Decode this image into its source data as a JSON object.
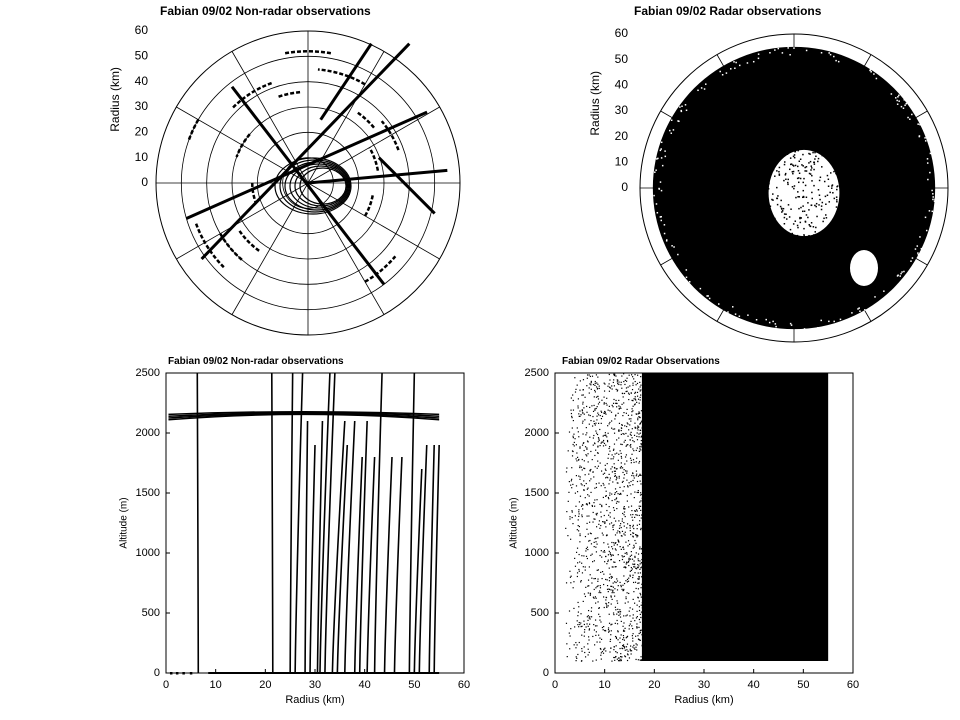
{
  "chart_data": [
    {
      "type": "scatter",
      "projection": "polar",
      "title": "Fabian 09/02 Non-radar observations",
      "ylabel": "Radius (km)",
      "ylim": [
        0,
        60
      ],
      "y_ticks": [
        "0",
        "10",
        "20",
        "30",
        "40",
        "50",
        "60"
      ],
      "grid": true,
      "tracks": [
        {
          "description": "radial flight leg",
          "points": [
            [
              -42,
              -30
            ],
            [
              40,
              55
            ]
          ]
        },
        {
          "description": "radial flight leg",
          "points": [
            [
              -30,
              38
            ],
            [
              30,
              -40
            ]
          ]
        },
        {
          "description": "radial flight leg",
          "points": [
            [
              -48,
              -14
            ],
            [
              47,
              28
            ]
          ]
        },
        {
          "description": "radial flight leg",
          "points": [
            [
              0,
              0
            ],
            [
              55,
              5
            ]
          ]
        },
        {
          "description": "radial flight leg",
          "points": [
            [
              5,
              25
            ],
            [
              25,
              55
            ]
          ]
        },
        {
          "description": "radial flight leg",
          "points": [
            [
              28,
              10
            ],
            [
              50,
              -12
            ]
          ]
        }
      ]
    },
    {
      "type": "scatter",
      "projection": "polar",
      "title": "Fabian 09/02 Radar observations",
      "ylabel": "Radius (km)",
      "ylim": [
        0,
        60
      ],
      "y_ticks": [
        "0",
        "10",
        "20",
        "30",
        "40",
        "50",
        "60"
      ],
      "grid": true,
      "coverage": {
        "max_radius": 55,
        "sparse_core_radius": 12
      }
    },
    {
      "type": "line",
      "title": "Fabian 09/02 Non-radar observations",
      "xlabel": "Radius (km)",
      "ylabel": "Altitude (m)",
      "xlim": [
        0,
        60
      ],
      "ylim": [
        0,
        2500
      ],
      "x_ticks": [
        "0",
        "10",
        "20",
        "30",
        "40",
        "50",
        "60"
      ],
      "y_ticks": [
        "0",
        "500",
        "1000",
        "1500",
        "2000",
        "2500"
      ],
      "flight_level_m": 2130,
      "profiles": [
        {
          "x": [
            6.5,
            6.3
          ],
          "y": [
            0,
            2500
          ]
        },
        {
          "x": [
            21.5,
            21.3
          ],
          "y": [
            0,
            2500
          ]
        },
        {
          "x": [
            25,
            25.5
          ],
          "y": [
            0,
            2500
          ]
        },
        {
          "x": [
            26,
            27.5
          ],
          "y": [
            0,
            2500
          ]
        },
        {
          "x": [
            28,
            28.5
          ],
          "y": [
            0,
            2100
          ]
        },
        {
          "x": [
            29,
            30
          ],
          "y": [
            0,
            1900
          ]
        },
        {
          "x": [
            30.5,
            31.5
          ],
          "y": [
            0,
            2100
          ]
        },
        {
          "x": [
            31,
            33
          ],
          "y": [
            0,
            2500
          ]
        },
        {
          "x": [
            32,
            34
          ],
          "y": [
            0,
            2500
          ]
        },
        {
          "x": [
            33.5,
            36
          ],
          "y": [
            0,
            2100
          ]
        },
        {
          "x": [
            34.5,
            36.5
          ],
          "y": [
            0,
            1900
          ]
        },
        {
          "x": [
            36,
            38
          ],
          "y": [
            0,
            2100
          ]
        },
        {
          "x": [
            38,
            39.5
          ],
          "y": [
            0,
            1800
          ]
        },
        {
          "x": [
            39,
            40.5
          ],
          "y": [
            0,
            2100
          ]
        },
        {
          "x": [
            40.5,
            42
          ],
          "y": [
            0,
            1800
          ]
        },
        {
          "x": [
            42,
            43.5
          ],
          "y": [
            0,
            2500
          ]
        },
        {
          "x": [
            44,
            45.5
          ],
          "y": [
            0,
            1800
          ]
        },
        {
          "x": [
            46,
            47.5
          ],
          "y": [
            0,
            1800
          ]
        },
        {
          "x": [
            49,
            50
          ],
          "y": [
            0,
            2500
          ]
        },
        {
          "x": [
            50,
            51.5
          ],
          "y": [
            0,
            1700
          ]
        },
        {
          "x": [
            51,
            52.5
          ],
          "y": [
            0,
            1900
          ]
        },
        {
          "x": [
            53,
            54
          ],
          "y": [
            0,
            1900
          ]
        },
        {
          "x": [
            54,
            55
          ],
          "y": [
            0,
            1900
          ]
        }
      ]
    },
    {
      "type": "scatter",
      "title": "Fabian 09/02 Radar Observations",
      "xlabel": "Radius (km)",
      "ylabel": "Altitude (m)",
      "xlim": [
        0,
        60
      ],
      "ylim": [
        0,
        2500
      ],
      "x_ticks": [
        "0",
        "10",
        "20",
        "30",
        "40",
        "50",
        "60"
      ],
      "y_ticks": [
        "0",
        "500",
        "1000",
        "1500",
        "2000",
        "2500"
      ],
      "dense_region": {
        "x": [
          17.5,
          55
        ],
        "y": [
          100,
          2500
        ]
      },
      "sparse_region": {
        "x": [
          2,
          17.5
        ],
        "y": [
          100,
          2500
        ]
      }
    }
  ]
}
